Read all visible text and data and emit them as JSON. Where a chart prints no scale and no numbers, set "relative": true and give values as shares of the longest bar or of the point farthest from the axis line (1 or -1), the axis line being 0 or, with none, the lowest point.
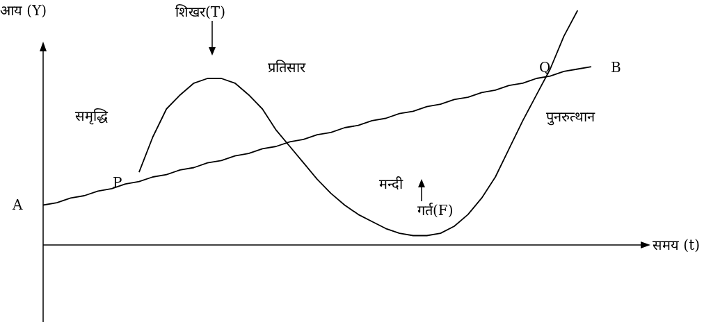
{
  "chart_data": {
    "type": "line",
    "relative": true,
    "xlabel": "समय (t)",
    "ylabel": "आय (Y)",
    "categories": [
      null,
      null,
      null,
      null,
      null,
      null,
      null,
      null,
      null,
      null,
      null,
      null,
      null,
      null,
      null,
      null,
      null,
      null,
      null,
      null,
      null,
      null,
      null,
      null,
      null,
      null,
      null,
      null,
      null,
      null,
      null,
      null,
      null,
      null,
      null,
      null,
      null,
      null,
      null,
      null,
      null
    ],
    "series": [
      {
        "color": "#000000",
        "values": [
          null,
          null,
          null,
          null,
          null,
          null,
          null,
          0.31,
          0.46,
          0.58,
          0.64,
          0.69,
          0.71,
          0.71,
          0.69,
          0.64,
          0.58,
          0.49,
          0.42,
          0.35,
          0.28,
          0.22,
          0.17,
          0.13,
          0.1,
          0.07,
          0.05,
          0.04,
          0.04,
          0.05,
          0.08,
          0.13,
          0.2,
          0.29,
          0.41,
          0.53,
          0.64,
          0.75,
          0.89,
          1.0,
          null
        ]
      },
      {
        "color": "#000000",
        "values": [
          0.17,
          0.18,
          0.2,
          0.21,
          0.23,
          0.24,
          0.26,
          0.27,
          0.29,
          0.3,
          0.32,
          0.33,
          0.35,
          0.36,
          0.38,
          0.39,
          0.41,
          0.42,
          0.44,
          0.45,
          0.47,
          0.48,
          0.5,
          0.51,
          0.53,
          0.54,
          0.56,
          0.57,
          0.59,
          0.6,
          0.62,
          0.63,
          0.65,
          0.66,
          0.68,
          0.69,
          0.71,
          0.72,
          0.74,
          0.75,
          0.76
        ]
      }
    ],
    "annotations": [
      "A",
      "B",
      "P",
      "Q",
      "शिखर(T)",
      "प्रतिसार",
      "समृद्धि",
      "मन्दी",
      "गर्त(F)",
      "पुनरुत्थान"
    ]
  }
}
